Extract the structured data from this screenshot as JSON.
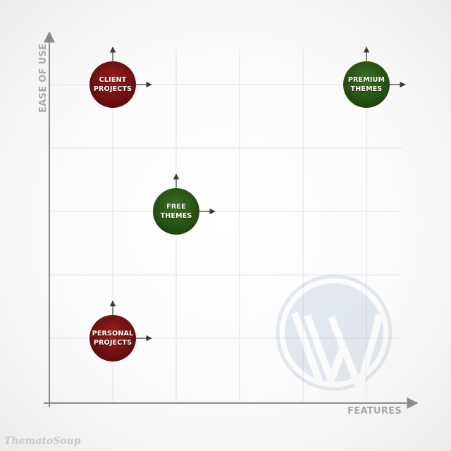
{
  "axes": {
    "y_label": "EASE OF USE",
    "x_label": "FEATURES"
  },
  "bubbles": [
    {
      "id": "client",
      "line1": "CLIENT",
      "line2": "PROJECTS",
      "color": "#7a1212",
      "col": 1,
      "row": 1
    },
    {
      "id": "premium",
      "line1": "PREMIUM",
      "line2": "THEMES",
      "color": "#2e5a17",
      "col": 5,
      "row": 1
    },
    {
      "id": "free",
      "line1": "FREE",
      "line2": "THEMES",
      "color": "#2e5a17",
      "col": 2,
      "row": 3
    },
    {
      "id": "personal",
      "line1": "PERSONAL",
      "line2": "PROJECTS",
      "color": "#7a1212",
      "col": 1,
      "row": 5
    }
  ],
  "watermark_icon": "wordpress-logo-icon",
  "brand": "ThematoSoup"
}
